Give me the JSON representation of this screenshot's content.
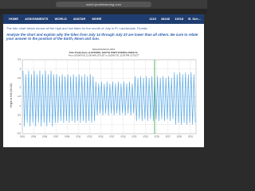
{
  "browser": {
    "url": "world.prodelearning.com"
  },
  "nav": {
    "items": [
      "HOME",
      "ASSIGNMENTS",
      "WORLD",
      "AVATAR",
      "MORE"
    ],
    "stats": [
      "1119",
      "28446",
      "11918"
    ],
    "user": "B. Sch..."
  },
  "content": {
    "intro": "The tide chart below shows all the high and low tides for the month of July in Ft. Lauderdale, Florida.",
    "prompt": "Analyze the chart and explain why the tides from July 14 through July 20 are lower than all others. Be sure to relate your answer to the position of the Earth, Moon and Sun."
  },
  "chart_data": {
    "type": "line",
    "title": "NOAA/NOS/CO-OPS",
    "subtitle": "Tide Predictions at 8722956, SOUTH PORT EVERGLADES FL",
    "caption": "From 2019/07/01 12:00 AM LST/LDT to 2019/07/31 11:59 PM LST/LDT",
    "y_label": "Height in feet (MLLW)",
    "ylim": [
      -0.5,
      3.5
    ],
    "yticks": [
      -0.5,
      0,
      0.5,
      1,
      1.5,
      2,
      2.5,
      3,
      3.5
    ],
    "xlim": [
      1,
      32
    ],
    "xticks": [
      {
        "value": 1,
        "label": "07/01"
      },
      {
        "value": 3,
        "label": "07/03"
      },
      {
        "value": 5,
        "label": "07/05"
      },
      {
        "value": 7,
        "label": "07/07"
      },
      {
        "value": 9,
        "label": "07/09"
      },
      {
        "value": 11,
        "label": "07/11"
      },
      {
        "value": 13,
        "label": "07/13"
      },
      {
        "value": 15,
        "label": "07/15"
      },
      {
        "value": 17,
        "label": "07/17"
      },
      {
        "value": 19,
        "label": "07/19"
      },
      {
        "value": 21,
        "label": "07/21"
      },
      {
        "value": 23,
        "label": "07/23"
      },
      {
        "value": 25,
        "label": "07/25"
      },
      {
        "value": 27,
        "label": "07/27"
      },
      {
        "value": 29,
        "label": "07/29"
      },
      {
        "value": 31,
        "label": "07/31"
      }
    ],
    "grid": true,
    "series": [
      {
        "color": "#5aa9e6",
        "values": [
          2.9,
          -0.1,
          2.7,
          0.1,
          2.9,
          -0.1,
          2.7,
          0.1,
          2.9,
          -0.1,
          2.7,
          0.1,
          2.9,
          -0.1,
          2.7,
          0.1,
          2.9,
          -0.1,
          2.7,
          0.1,
          2.9,
          -0.1,
          2.7,
          0.1,
          2.7,
          0.1,
          2.6,
          0.2,
          2.7,
          0.1,
          2.6,
          0.2,
          2.7,
          0.1,
          2.6,
          0.2,
          2.7,
          0.1,
          2.6,
          0.2,
          2.7,
          0.1,
          2.6,
          0.2,
          2.7,
          0.1,
          2.6,
          0.2,
          2.7,
          0.1,
          2.6,
          0.2,
          2.3,
          0.5,
          2.2,
          0.6,
          2.3,
          0.5,
          2.2,
          0.6,
          2.3,
          0.5,
          2.2,
          0.6,
          2.3,
          0.5,
          2.2,
          0.6,
          2.3,
          0.5,
          2.2,
          0.6,
          2.3,
          0.5,
          2.2,
          0.6,
          2.3,
          0.5,
          2.2,
          0.6,
          2.6,
          0.2,
          2.5,
          0.3,
          2.6,
          0.2,
          2.5,
          0.3,
          2.6,
          0.2,
          2.5,
          0.3,
          2.6,
          0.2,
          2.5,
          0.3,
          2.6,
          0.2,
          2.5,
          0.3,
          2.6,
          0.2,
          2.5,
          0.3,
          2.6,
          0.2,
          2.5,
          0.3,
          2.8,
          0,
          2.7,
          0.1,
          2.8,
          0,
          2.7,
          0.1,
          2.8,
          0,
          2.7,
          0.1,
          2.8,
          0,
          2.7,
          0.1
        ]
      }
    ]
  }
}
